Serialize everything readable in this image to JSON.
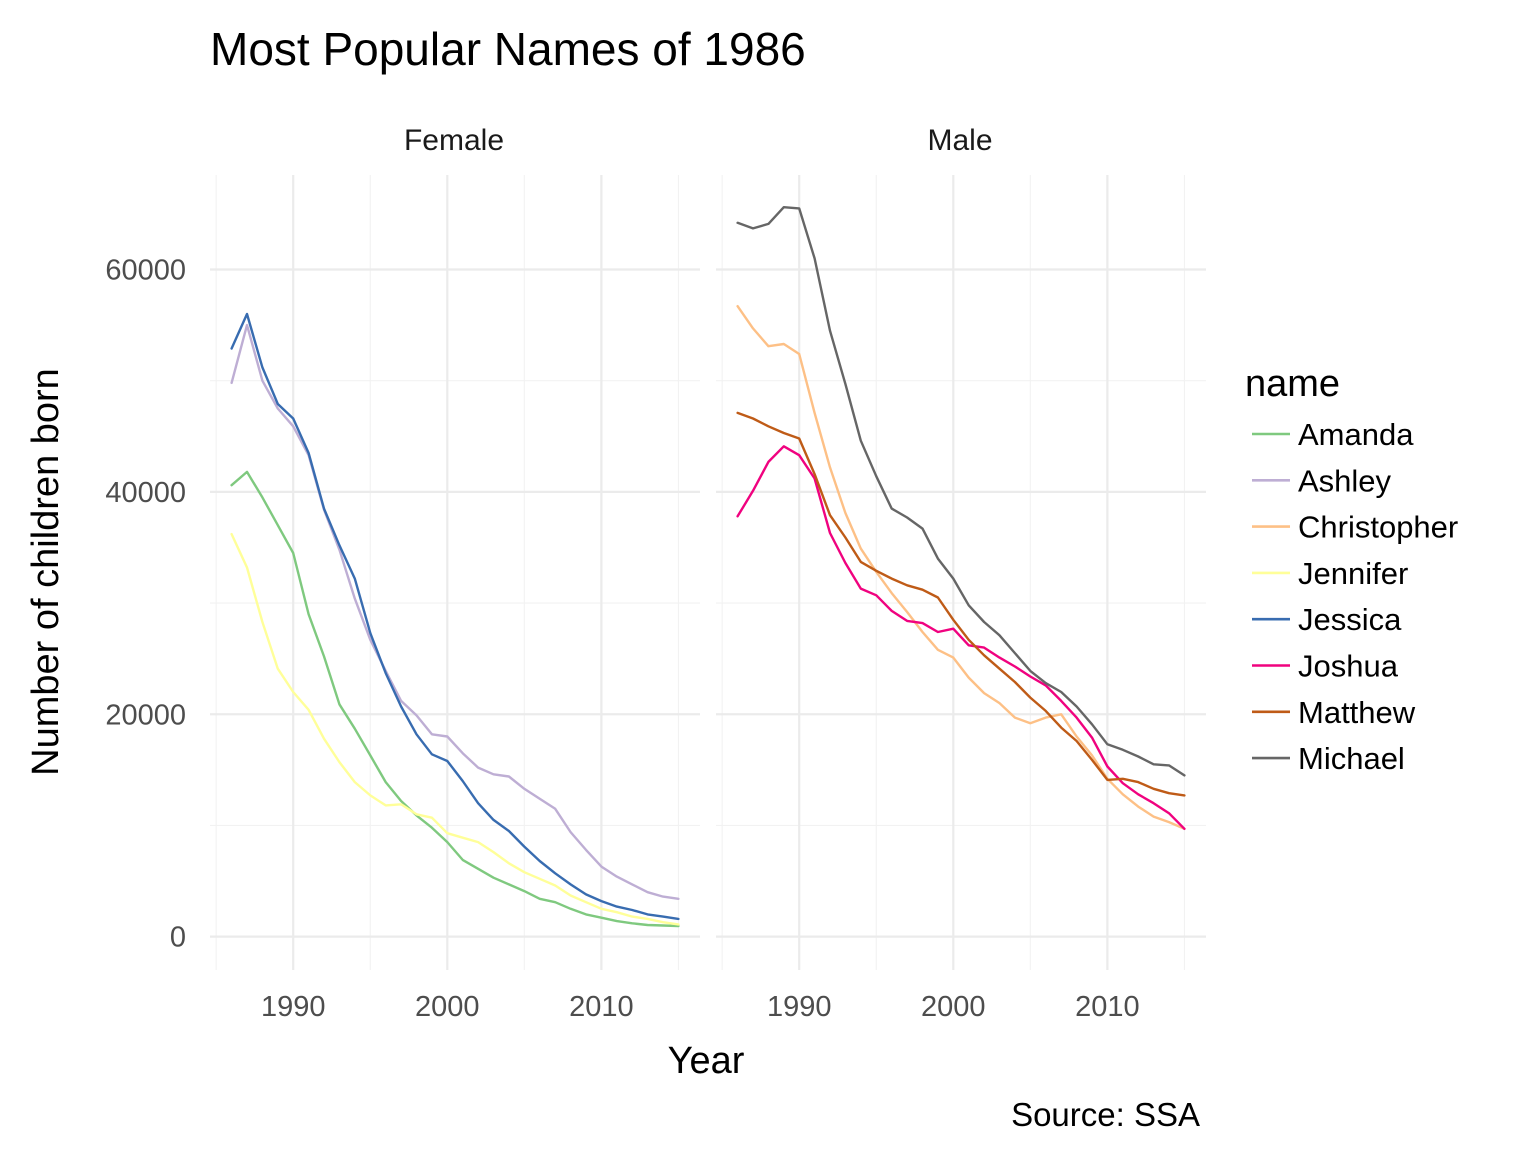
{
  "chart_data": {
    "type": "line",
    "title": "Most Popular Names of 1986",
    "xlabel": "Year",
    "ylabel": "Number of children born",
    "caption": "Source: SSA",
    "legend_title": "name",
    "legend_position": "right",
    "grid": true,
    "xlim": [
      1984.6,
      2016.4
    ],
    "ylim": [
      -3000,
      68500
    ],
    "x_ticks": [
      1990,
      2000,
      2010
    ],
    "y_ticks": [
      0,
      20000,
      40000,
      60000
    ],
    "x": [
      1986,
      1987,
      1988,
      1989,
      1990,
      1991,
      1992,
      1993,
      1994,
      1995,
      1996,
      1997,
      1998,
      1999,
      2000,
      2001,
      2002,
      2003,
      2004,
      2005,
      2006,
      2007,
      2008,
      2009,
      2010,
      2011,
      2012,
      2013,
      2014,
      2015
    ],
    "legend": [
      {
        "name": "Amanda",
        "color": "#7fc97f"
      },
      {
        "name": "Ashley",
        "color": "#beaed4"
      },
      {
        "name": "Christopher",
        "color": "#fdc086"
      },
      {
        "name": "Jennifer",
        "color": "#ffff99"
      },
      {
        "name": "Jessica",
        "color": "#386cb0"
      },
      {
        "name": "Joshua",
        "color": "#f0027f"
      },
      {
        "name": "Matthew",
        "color": "#bf5b17"
      },
      {
        "name": "Michael",
        "color": "#666666"
      }
    ],
    "panels": [
      {
        "label": "Female",
        "series": [
          {
            "name": "Amanda",
            "values": [
              40600,
              41800,
              39500,
              37000,
              34500,
              29000,
              25200,
              20900,
              18700,
              16300,
              13900,
              12200,
              10900,
              9800,
              8500,
              6900,
              6100,
              5300,
              4700,
              4100,
              3400,
              3100,
              2500,
              2000,
              1700,
              1400,
              1200,
              1050,
              1000,
              950
            ]
          },
          {
            "name": "Ashley",
            "values": [
              49800,
              55000,
              50000,
              47500,
              45900,
              43300,
              38400,
              34800,
              30400,
              26700,
              23900,
              21200,
              19900,
              18200,
              18000,
              16500,
              15200,
              14600,
              14400,
              13300,
              12400,
              11500,
              9400,
              7800,
              6300,
              5400,
              4700,
              4000,
              3600,
              3400
            ]
          },
          {
            "name": "Jennifer",
            "values": [
              36200,
              33200,
              28300,
              24100,
              22000,
              20400,
              17800,
              15700,
              13900,
              12700,
              11800,
              11900,
              11000,
              10700,
              9300,
              8900,
              8500,
              7600,
              6600,
              5800,
              5200,
              4600,
              3700,
              3100,
              2500,
              2200,
              1800,
              1600,
              1300,
              1100
            ]
          },
          {
            "name": "Jessica",
            "values": [
              52900,
              56000,
              51200,
              47900,
              46600,
              43500,
              38500,
              35200,
              32200,
              27300,
              23700,
              20700,
              18200,
              16400,
              15800,
              14000,
              12000,
              10500,
              9500,
              8100,
              6800,
              5700,
              4700,
              3800,
              3200,
              2700,
              2400,
              2000,
              1800,
              1600
            ]
          }
        ]
      },
      {
        "label": "Male",
        "series": [
          {
            "name": "Christopher",
            "values": [
              56700,
              54700,
              53100,
              53300,
              52400,
              47100,
              42200,
              38100,
              34900,
              32800,
              30900,
              29200,
              27400,
              25800,
              25100,
              23300,
              21900,
              21000,
              19700,
              19200,
              19700,
              20000,
              18000,
              16300,
              14200,
              12800,
              11700,
              10800,
              10300,
              9700
            ]
          },
          {
            "name": "Joshua",
            "values": [
              37800,
              40100,
              42700,
              44100,
              43300,
              41200,
              36300,
              33600,
              31300,
              30700,
              29300,
              28400,
              28200,
              27400,
              27700,
              26200,
              26000,
              25100,
              24300,
              23400,
              22600,
              21200,
              19700,
              17900,
              15300,
              13800,
              12800,
              12000,
              11100,
              9700
            ]
          },
          {
            "name": "Matthew",
            "values": [
              47100,
              46600,
              45900,
              45300,
              44800,
              41600,
              37900,
              35900,
              33700,
              32900,
              32200,
              31600,
              31200,
              30500,
              28500,
              26700,
              25300,
              24100,
              22900,
              21500,
              20300,
              18800,
              17600,
              15900,
              14100,
              14200,
              13900,
              13300,
              12900,
              12700
            ]
          },
          {
            "name": "Michael",
            "values": [
              64200,
              63700,
              64100,
              65600,
              65500,
              61000,
              54500,
              49700,
              44600,
              41400,
              38500,
              37700,
              36700,
              34000,
              32200,
              29800,
              28300,
              27100,
              25500,
              23900,
              22800,
              22000,
              20700,
              19100,
              17300,
              16800,
              16200,
              15500,
              15400,
              14500
            ]
          }
        ]
      }
    ]
  }
}
